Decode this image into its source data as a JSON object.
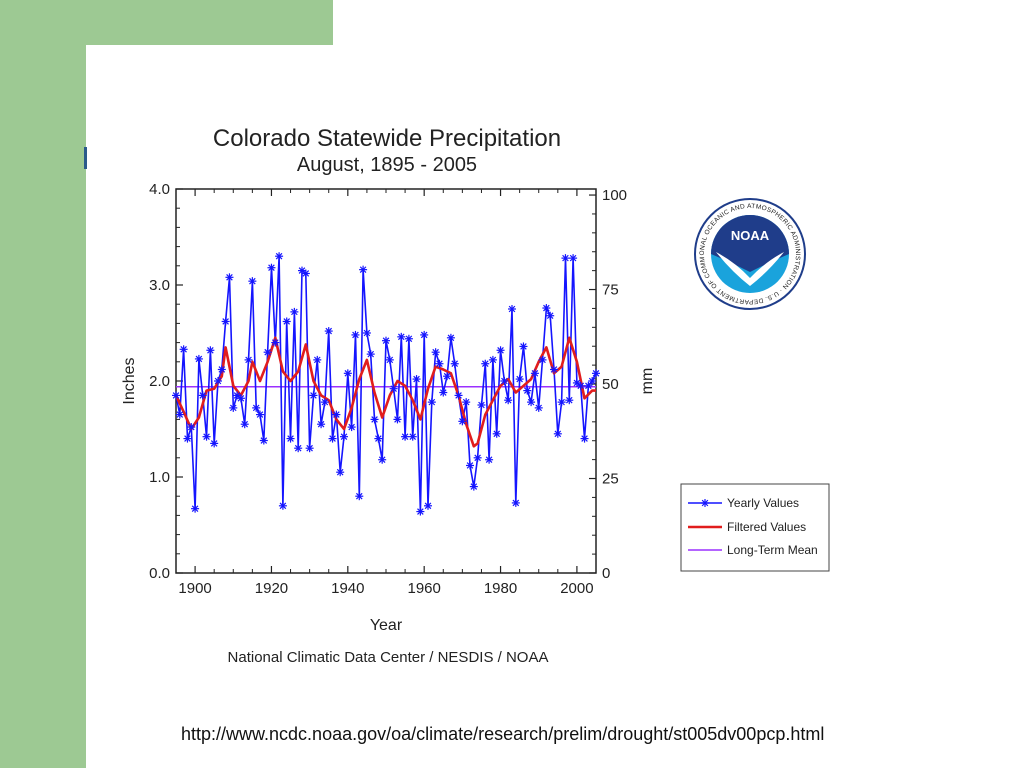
{
  "colors": {
    "slide_green": "#9dc993",
    "yearly": "#1515ff",
    "filtered": "#e11d1d",
    "mean": "#9b30ff"
  },
  "source_url": "http://www.ncdc.noaa.gov/oa/climate/research/prelim/drought/st005dv00pcp.html",
  "logo": {
    "text_center": "NOAA",
    "text_ring": "NATIONAL OCEANIC AND ATMOSPHERIC ADMINISTRATION · U.S. DEPARTMENT OF COMMERCE"
  },
  "chart_data": {
    "type": "line",
    "title": "Colorado Statewide Precipitation",
    "subtitle": "August, 1895 - 2005",
    "xlabel": "Year",
    "ylabel": "Inches",
    "ylabel_right": "mm",
    "credit": "National Climatic Data Center / NESDIS / NOAA",
    "xlim": [
      1895,
      2005
    ],
    "ylim": [
      0,
      4.0
    ],
    "ylim_right": [
      0,
      101.6
    ],
    "xticks": [
      "1900",
      "1920",
      "1940",
      "1960",
      "1980",
      "2000"
    ],
    "yticks": [
      "0.0",
      "1.0",
      "2.0",
      "3.0",
      "4.0"
    ],
    "yticks_right": [
      "0",
      "25",
      "50",
      "75",
      "100"
    ],
    "legend_position": "right",
    "grid": false,
    "series": [
      {
        "name": "Yearly Values",
        "marker": "asterisk",
        "x": [
          1895,
          1896,
          1897,
          1898,
          1899,
          1900,
          1901,
          1902,
          1903,
          1904,
          1905,
          1906,
          1907,
          1908,
          1909,
          1910,
          1911,
          1912,
          1913,
          1914,
          1915,
          1916,
          1917,
          1918,
          1919,
          1920,
          1921,
          1922,
          1923,
          1924,
          1925,
          1926,
          1927,
          1928,
          1929,
          1930,
          1931,
          1932,
          1933,
          1934,
          1935,
          1936,
          1937,
          1938,
          1939,
          1940,
          1941,
          1942,
          1943,
          1944,
          1945,
          1946,
          1947,
          1948,
          1949,
          1950,
          1951,
          1952,
          1953,
          1954,
          1955,
          1956,
          1957,
          1958,
          1959,
          1960,
          1961,
          1962,
          1963,
          1964,
          1965,
          1966,
          1967,
          1968,
          1969,
          1970,
          1971,
          1972,
          1973,
          1974,
          1975,
          1976,
          1977,
          1978,
          1979,
          1980,
          1981,
          1982,
          1983,
          1984,
          1985,
          1986,
          1987,
          1988,
          1989,
          1990,
          1991,
          1992,
          1993,
          1994,
          1995,
          1996,
          1997,
          1998,
          1999,
          2000,
          2001,
          2002,
          2003,
          2004,
          2005
        ],
        "values": [
          1.85,
          1.65,
          2.33,
          1.4,
          1.52,
          0.67,
          2.23,
          1.85,
          1.42,
          2.32,
          1.35,
          2.0,
          2.12,
          2.62,
          3.08,
          1.72,
          1.85,
          1.82,
          1.55,
          2.22,
          3.04,
          1.72,
          1.65,
          1.38,
          2.3,
          3.18,
          2.4,
          3.3,
          0.7,
          2.62,
          1.4,
          2.72,
          1.3,
          3.15,
          3.12,
          1.3,
          1.85,
          2.22,
          1.55,
          1.78,
          2.52,
          1.4,
          1.65,
          1.05,
          1.42,
          2.08,
          1.52,
          2.48,
          0.8,
          3.16,
          2.5,
          2.28,
          1.6,
          1.4,
          1.18,
          2.42,
          2.22,
          1.92,
          1.6,
          2.46,
          1.42,
          2.44,
          1.42,
          2.02,
          0.64,
          2.48,
          0.7,
          1.78,
          2.3,
          2.18,
          1.88,
          2.05,
          2.45,
          2.18,
          1.85,
          1.58,
          1.78,
          1.12,
          0.9,
          1.2,
          1.75,
          2.18,
          1.18,
          2.22,
          1.45,
          2.32,
          2.0,
          1.8,
          2.75,
          0.73,
          2.02,
          2.36,
          1.9,
          1.78,
          2.08,
          1.72,
          2.22,
          2.76,
          2.68,
          2.12,
          1.45,
          1.78,
          3.28,
          1.8,
          3.28,
          1.98,
          1.95,
          1.4,
          1.95,
          2.0,
          2.08
        ]
      },
      {
        "name": "Filtered Values",
        "x": [
          1895,
          1897,
          1899,
          1901,
          1903,
          1905,
          1907,
          1908,
          1910,
          1912,
          1914,
          1915,
          1917,
          1919,
          1921,
          1923,
          1925,
          1927,
          1929,
          1931,
          1933,
          1935,
          1937,
          1939,
          1941,
          1943,
          1945,
          1947,
          1949,
          1951,
          1953,
          1955,
          1957,
          1959,
          1961,
          1963,
          1965,
          1967,
          1969,
          1971,
          1973,
          1974,
          1976,
          1978,
          1980,
          1982,
          1984,
          1986,
          1988,
          1990,
          1992,
          1994,
          1996,
          1998,
          2000,
          2002,
          2004,
          2005
        ],
        "values": [
          1.85,
          1.68,
          1.5,
          1.62,
          1.9,
          1.92,
          2.05,
          2.35,
          1.95,
          1.85,
          2.0,
          2.2,
          2.0,
          2.2,
          2.45,
          2.1,
          2.0,
          2.1,
          2.38,
          2.0,
          1.85,
          1.8,
          1.6,
          1.5,
          1.72,
          2.02,
          2.22,
          1.88,
          1.62,
          1.85,
          2.0,
          1.95,
          1.8,
          1.6,
          1.92,
          2.15,
          2.12,
          2.08,
          1.85,
          1.55,
          1.32,
          1.35,
          1.65,
          1.8,
          1.95,
          2.02,
          1.88,
          1.95,
          2.02,
          2.2,
          2.35,
          2.08,
          2.15,
          2.45,
          2.2,
          1.82,
          1.9,
          1.9
        ]
      },
      {
        "name": "Long-Term Mean",
        "value": 1.94
      }
    ]
  }
}
